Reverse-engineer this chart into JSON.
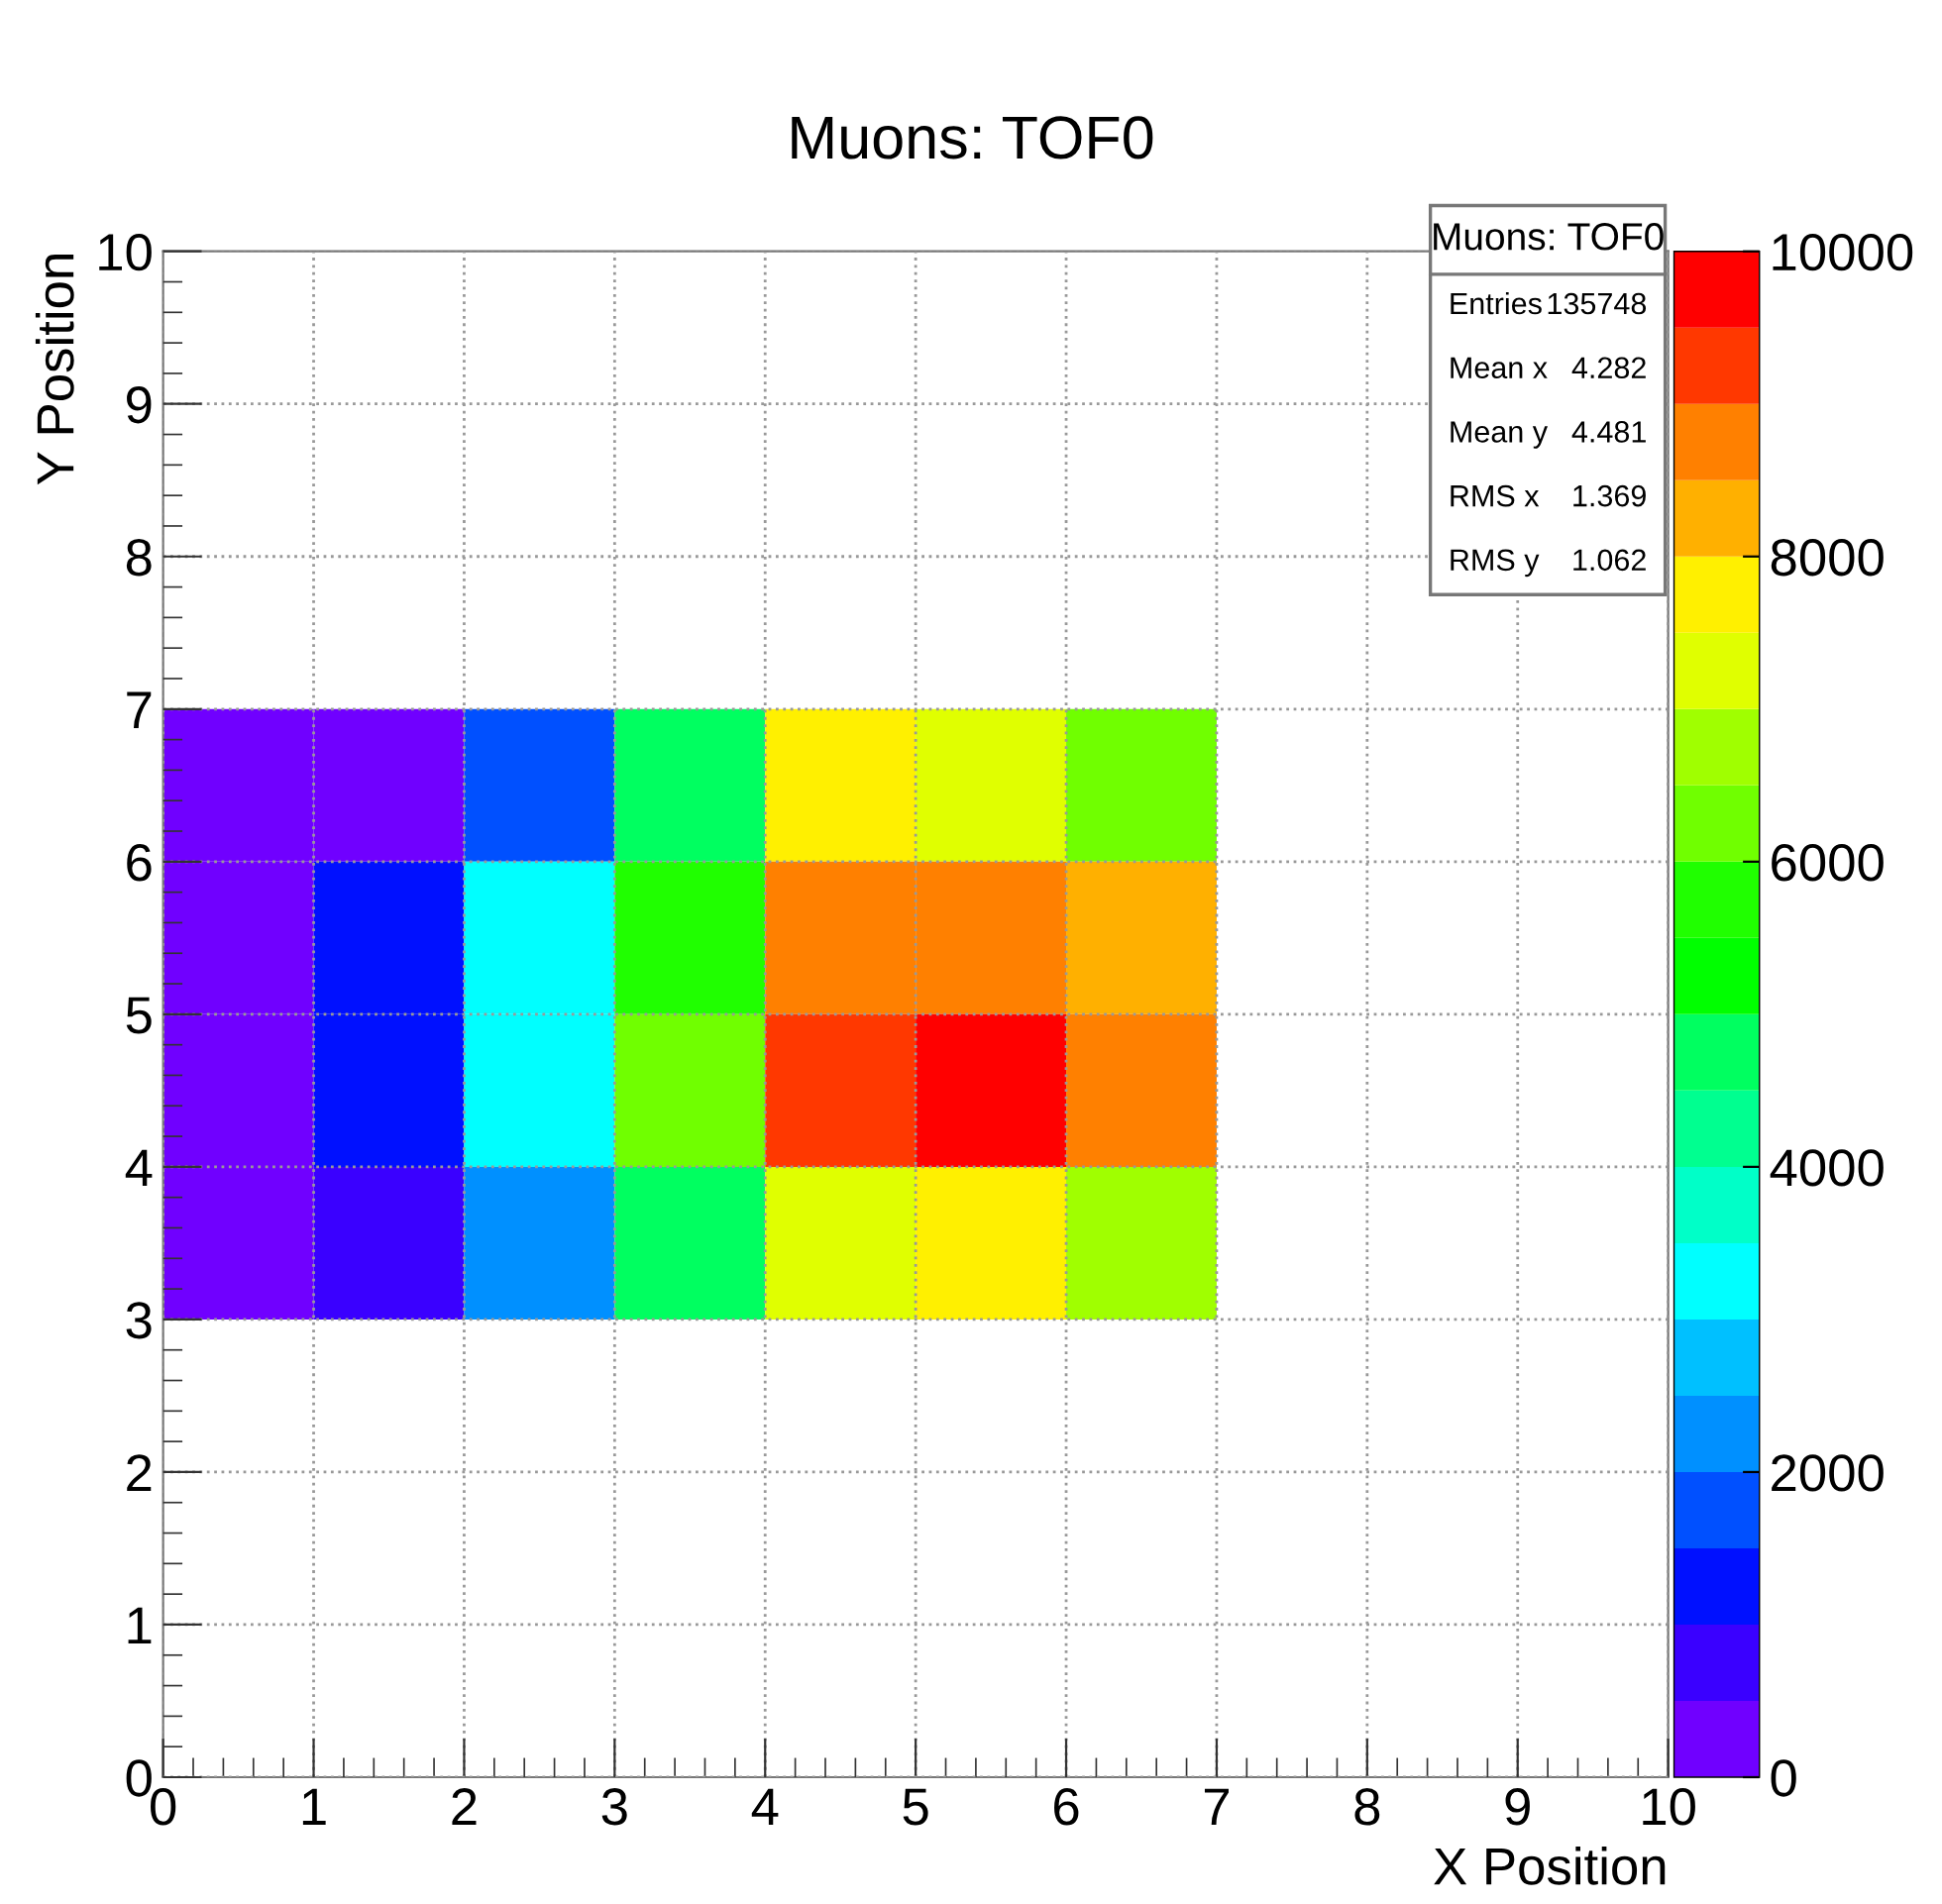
{
  "chart_data": {
    "type": "heatmap",
    "title": "Muons: TOF0",
    "xlabel": "X Position",
    "ylabel": "Y Position",
    "xlim": [
      0,
      10
    ],
    "ylim": [
      0,
      10
    ],
    "xticks": [
      0,
      1,
      2,
      3,
      4,
      5,
      6,
      7,
      8,
      9,
      10
    ],
    "yticks": [
      0,
      1,
      2,
      3,
      4,
      5,
      6,
      7,
      8,
      9,
      10
    ],
    "grid": true,
    "clim": [
      0,
      10000
    ],
    "cticks": [
      0,
      2000,
      4000,
      6000,
      8000,
      10000
    ],
    "colors": [
      "#7000ff",
      "#3a00ff",
      "#0010ff",
      "#0050ff",
      "#0090ff",
      "#00c0ff",
      "#00ffff",
      "#00ffc8",
      "#00ff90",
      "#00ff60",
      "#00ff00",
      "#20ff00",
      "#70ff00",
      "#a0ff00",
      "#e0ff00",
      "#fff000",
      "#ffb000",
      "#ff8000",
      "#ff3800",
      "#ff0000"
    ],
    "x": [
      0.5,
      1.5,
      2.5,
      3.5,
      4.5,
      5.5,
      6.5
    ],
    "y": [
      6.5,
      5.5,
      4.5,
      3.5
    ],
    "cells": [
      [
        250,
        250,
        1750,
        4750,
        7750,
        7250,
        6250
      ],
      [
        250,
        1250,
        3250,
        5750,
        8750,
        8750,
        8250
      ],
      [
        250,
        1250,
        3250,
        6250,
        9250,
        9750,
        8750
      ],
      [
        250,
        750,
        2250,
        4750,
        7250,
        7750,
        6750
      ]
    ],
    "annotations": [
      "Muons: TOF0",
      "Entries",
      "135748",
      "Mean x",
      "4.282",
      "Mean y",
      "4.481",
      "RMS x",
      "1.369",
      "RMS y",
      "1.062"
    ]
  }
}
